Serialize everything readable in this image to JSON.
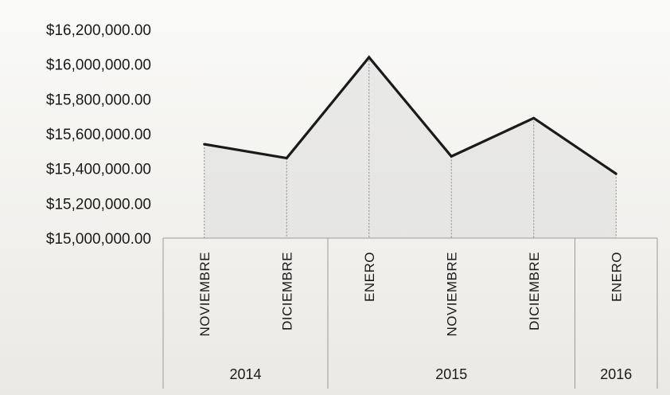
{
  "chart_data": {
    "type": "line",
    "title": "",
    "xlabel": "",
    "ylabel": "",
    "categories": [
      "NOVIEMBRE",
      "DICIEMBRE",
      "ENERO",
      "NOVIEMBRE",
      "DICIEMBRE",
      "ENERO"
    ],
    "groups": [
      {
        "label": "2014",
        "count": 2
      },
      {
        "label": "2015",
        "count": 3
      },
      {
        "label": "2016",
        "count": 1
      }
    ],
    "values": [
      15540000,
      15460000,
      16040000,
      15470000,
      15690000,
      15370000
    ],
    "ylim": [
      15000000,
      16200000
    ],
    "yticks": [
      16200000,
      16000000,
      15800000,
      15600000,
      15400000,
      15200000,
      15000000
    ],
    "ytick_labels": [
      "$16,200,000.00",
      "$16,000,000.00",
      "$15,800,000.00",
      "$15,600,000.00",
      "$15,400,000.00",
      "$15,200,000.00",
      "$15,000,000.00"
    ],
    "grid": false,
    "drop_lines": true,
    "colors": {
      "line": "#1a1a1a",
      "area": "#dcdcdc",
      "axis": "#9a9a9a"
    }
  }
}
